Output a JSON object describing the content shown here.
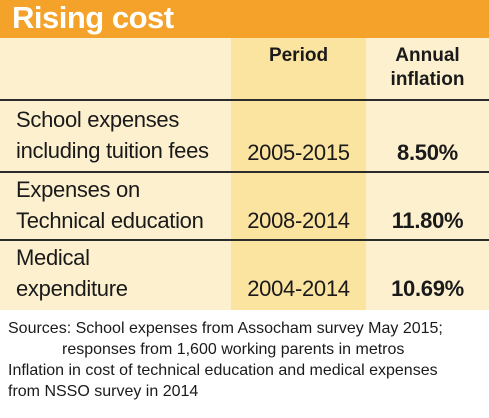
{
  "header": {
    "title": "Rising cost"
  },
  "chart_data": {
    "type": "table",
    "title": "Rising cost",
    "columns": [
      "",
      "Period",
      "Annual\ninflation"
    ],
    "rows": [
      {
        "label": "School expenses\nincluding tuition fees",
        "period": "2005-2015",
        "inflation": "8.50%"
      },
      {
        "label": "Expenses on\nTechnical education",
        "period": "2008-2014",
        "inflation": "11.80%"
      },
      {
        "label": "Medical\nexpenditure",
        "period": "2004-2014",
        "inflation": "10.69%"
      }
    ]
  },
  "sources": {
    "line1": "Sources: School expenses from Assocham survey May 2015;",
    "line2": "responses from 1,600 working parents in metros",
    "line3": "Inflation in cost of technical education and medical expenses",
    "line4": "from NSSO survey in 2014"
  },
  "colors": {
    "header_bg": "#f4a22a",
    "table_bg": "#fdf0cf",
    "period_band": "#fbe3a0",
    "text": "#1a1a1a",
    "divider": "#2b2b2b"
  }
}
